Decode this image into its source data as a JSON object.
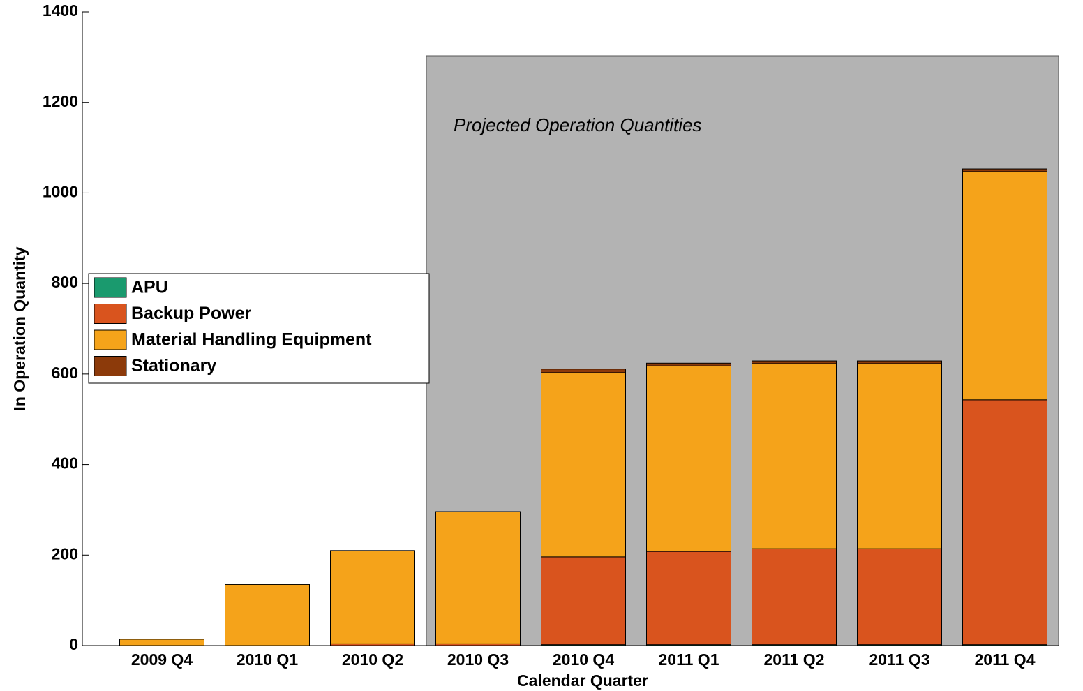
{
  "chart_data": {
    "type": "stacked_bar",
    "annotations": [
      "Projected Operation Quantities"
    ],
    "xlabel": "Calendar Quarter",
    "ylabel": "In Operation Quantity",
    "categories": [
      "2009 Q4",
      "2010 Q1",
      "2010 Q2",
      "2010 Q3",
      "2010 Q4",
      "2011 Q1",
      "2011 Q2",
      "2011 Q3",
      "2011 Q4"
    ],
    "series": [
      {
        "name": "APU",
        "color": "#1a9a6e",
        "values": [
          0,
          0,
          0,
          0,
          2,
          2,
          2,
          2,
          2
        ]
      },
      {
        "name": "Backup Power",
        "color": "#d9541e",
        "values": [
          0,
          0,
          4,
          4,
          194,
          206,
          212,
          212,
          541
        ]
      },
      {
        "name": "Material Handling Equipment",
        "color": "#f5a31a",
        "values": [
          14,
          135,
          206,
          292,
          407,
          410,
          409,
          409,
          504
        ]
      },
      {
        "name": "Stationary",
        "color": "#8c3a0a",
        "values": [
          0,
          0,
          0,
          0,
          8,
          6,
          6,
          6,
          6
        ]
      }
    ],
    "ylim": [
      0,
      1400
    ],
    "yticks": [
      0,
      200,
      400,
      600,
      800,
      1000,
      1200,
      1400
    ],
    "legend": "left",
    "grid": false
  }
}
